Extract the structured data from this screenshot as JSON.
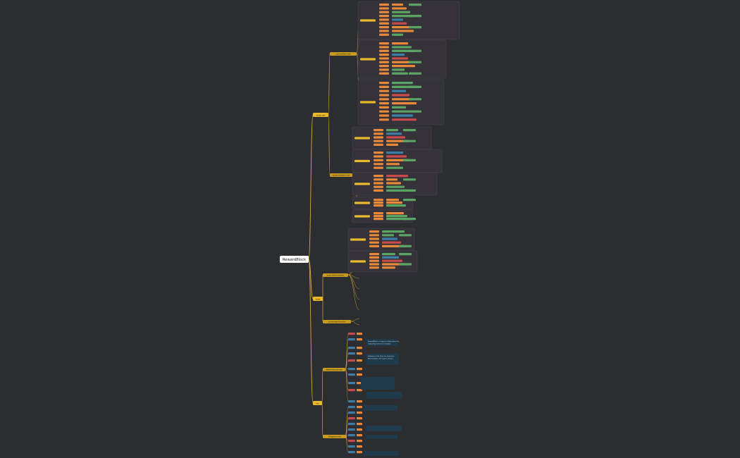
{
  "mindmap": {
    "root": "RewardBlock",
    "branches": [
      {
        "label": "javascript",
        "children": [
          {
            "label": "pub-transfers-node"
          },
          {
            "label": "private-transfers-node"
          }
        ]
      },
      {
        "label": "state",
        "children": [
          {
            "label": "public-state-transition"
          },
          {
            "label": "private-state-transition"
          }
        ]
      },
      {
        "label": "dao",
        "children": [
          {
            "label": "stakeholder-proposals"
          },
          {
            "label": "delegated-votes"
          }
        ]
      }
    ],
    "note_lines": [
      "RewardBlock is a stage in a chain where the",
      "originating contract is rewarded",
      "Validators of the block are listed here",
      "Both transfers with a given amount"
    ]
  }
}
